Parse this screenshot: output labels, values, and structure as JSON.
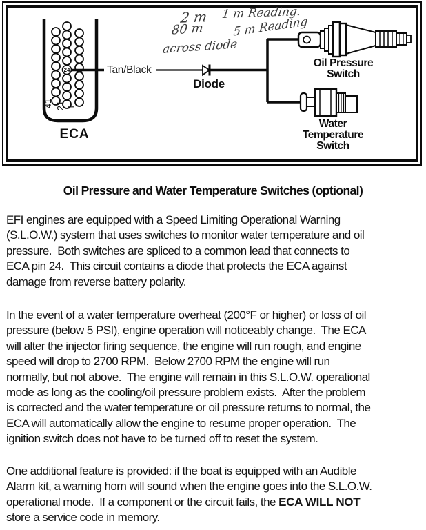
{
  "diagram": {
    "eca_label": "ECA",
    "pin24_label": "24",
    "row_labels": {
      "row41": "41",
      "row21": "21",
      "row1": "1"
    },
    "wire_label": "Tan/Black",
    "diode_label": "Diode",
    "oil_switch_label": {
      "lines": [
        "Oil Pressure",
        "Switch"
      ]
    },
    "water_switch_label": {
      "lines": [
        "Water",
        "Temperature",
        "Switch"
      ]
    },
    "handwriting": {
      "line1_left": "2 m",
      "line1_right": "1 m Reading.",
      "line2_left": "80 m",
      "line2_right": "5 m Reading",
      "line3": "across diode"
    }
  },
  "title": "Oil Pressure and Water Temperature Switches (optional)",
  "paragraphs": [
    {
      "lines": [
        "EFI engines are equipped with a Speed Limiting Operational Warning",
        "(S.L.O.W.) system that uses switches to monitor water temperature and oil",
        "pressure.  Both switches are spliced to a common lead that connects to",
        "ECA pin 24.  This circuit contains a diode that protects the ECA against",
        "damage from reverse battery polarity."
      ]
    },
    {
      "lines": [
        "In the event of a water temperature overheat (200°F or higher) or loss of oil",
        "pressure (below 5 PSI), engine operation will noticeably change.  The ECA",
        "will alter the injector firing sequence, the engine will run rough, and engine",
        "speed will drop to 2700 RPM.  Below 2700 RPM the engine will run",
        "normally, but not above.  The engine will remain in this S.L.O.W. operational",
        "mode as long as the cooling/oil pressure problem exists.  After the problem",
        "is corrected and the water temperature or oil pressure returns to normal, the",
        "ECA will automatically allow the engine to resume proper operation.  The",
        "ignition switch does not have to be turned off to reset the system."
      ]
    },
    {
      "lines": [
        "One additional feature is provided: if the boat is equipped with an Audible",
        "Alarm kit, a warning horn will sound when the engine goes into the S.L.O.W.",
        {
          "pre": "operational mode.  If a component or the circuit fails, the ",
          "bold": "ECA WILL NOT"
        },
        "store a service code in memory."
      ]
    }
  ],
  "colors": {
    "ink": "#0d0d0d",
    "paper": "#ffffff"
  }
}
